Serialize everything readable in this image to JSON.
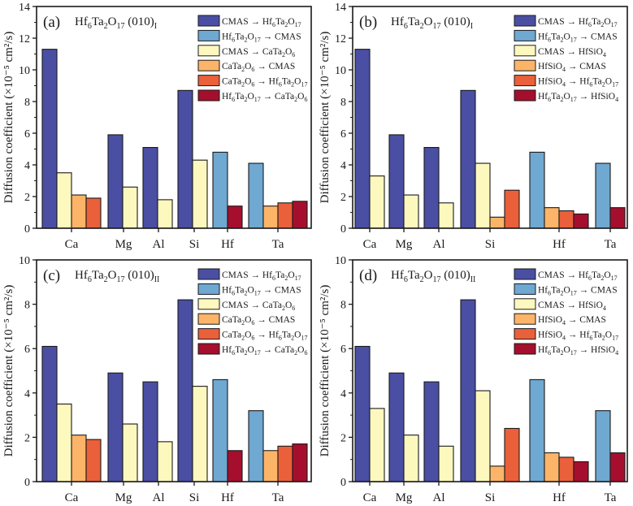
{
  "colors": {
    "s1": "#4A4FA3",
    "s2": "#6FA8D0",
    "s3": "#FDF8BE",
    "s4": "#FCB468",
    "s5": "#E9603B",
    "s6": "#A50F2D"
  },
  "chart_data": [
    {
      "type": "bar",
      "panel": "(a)",
      "title": "Hf6Ta2O17 (010)I",
      "title_parts": {
        "base": "Hf",
        "s1": "6",
        "t1": "Ta",
        "s2": "2",
        "t2": "O",
        "s3": "17",
        "t3": " (010)",
        "s4": "I"
      },
      "ylabel": "Diffusion coefficient (×10⁻⁵ cm²/s)",
      "ylim": [
        0,
        14
      ],
      "yticks": [
        0,
        2,
        4,
        6,
        8,
        10,
        12,
        14
      ],
      "categories": [
        "Ca",
        "Mg",
        "Al",
        "Si",
        "Hf",
        "Ta"
      ],
      "legend_position": "top-right",
      "series": [
        {
          "name": "CMAS → Hf6Ta2O17",
          "color_key": "s1",
          "values": [
            11.3,
            5.9,
            5.1,
            8.7,
            null,
            null
          ]
        },
        {
          "name": "Hf6Ta2O17 → CMAS",
          "color_key": "s2",
          "values": [
            null,
            null,
            null,
            null,
            4.8,
            4.1
          ]
        },
        {
          "name": "CMAS → CaTa2O6",
          "color_key": "s3",
          "values": [
            3.5,
            2.6,
            1.8,
            4.3,
            null,
            null
          ]
        },
        {
          "name": "CaTa2O6 → CMAS",
          "color_key": "s4",
          "values": [
            2.1,
            null,
            null,
            null,
            null,
            1.4
          ]
        },
        {
          "name": "CaTa2O6 → Hf6Ta2O17",
          "color_key": "s5",
          "values": [
            1.9,
            null,
            null,
            null,
            null,
            1.6
          ]
        },
        {
          "name": "Hf6Ta2O17 → CaTa2O6",
          "color_key": "s6",
          "values": [
            null,
            null,
            null,
            null,
            1.4,
            1.7
          ]
        }
      ],
      "legend_labels": [
        [
          [
            "CMAS → Hf",
            ""
          ],
          [
            "6",
            "sub"
          ],
          [
            "Ta",
            ""
          ],
          [
            "2",
            "sub"
          ],
          [
            "O",
            ""
          ],
          [
            "17",
            "sub"
          ]
        ],
        [
          [
            "Hf",
            ""
          ],
          [
            "6",
            "sub"
          ],
          [
            "Ta",
            ""
          ],
          [
            "2",
            "sub"
          ],
          [
            "O",
            ""
          ],
          [
            "17",
            "sub"
          ],
          [
            " → CMAS",
            ""
          ]
        ],
        [
          [
            "CMAS → CaTa",
            ""
          ],
          [
            "2",
            "sub"
          ],
          [
            "O",
            ""
          ],
          [
            "6",
            "sub"
          ]
        ],
        [
          [
            "CaTa",
            ""
          ],
          [
            "2",
            "sub"
          ],
          [
            "O",
            ""
          ],
          [
            "6",
            "sub"
          ],
          [
            " → CMAS",
            ""
          ]
        ],
        [
          [
            "CaTa",
            ""
          ],
          [
            "2",
            "sub"
          ],
          [
            "O",
            ""
          ],
          [
            "6",
            "sub"
          ],
          [
            " → Hf",
            ""
          ],
          [
            "6",
            "sub"
          ],
          [
            "Ta",
            ""
          ],
          [
            "2",
            "sub"
          ],
          [
            "O",
            ""
          ],
          [
            "17",
            "sub"
          ]
        ],
        [
          [
            "Hf",
            ""
          ],
          [
            "6",
            "sub"
          ],
          [
            "Ta",
            ""
          ],
          [
            "2",
            "sub"
          ],
          [
            "O",
            ""
          ],
          [
            "17",
            "sub"
          ],
          [
            " → CaTa",
            ""
          ],
          [
            "2",
            "sub"
          ],
          [
            "O",
            ""
          ],
          [
            "6",
            "sub"
          ]
        ]
      ]
    },
    {
      "type": "bar",
      "panel": "(b)",
      "title": "Hf6Ta2O17 (010)I",
      "title_parts": {
        "base": "Hf",
        "s1": "6",
        "t1": "Ta",
        "s2": "2",
        "t2": "O",
        "s3": "17",
        "t3": " (010)",
        "s4": "I"
      },
      "ylabel": "Diffusion coefficient (×10⁻⁵ cm²/s)",
      "ylim": [
        0,
        14
      ],
      "yticks": [
        0,
        2,
        4,
        6,
        8,
        10,
        12,
        14
      ],
      "categories": [
        "Ca",
        "Mg",
        "Al",
        "Si",
        "Hf",
        "Ta"
      ],
      "legend_position": "top-right",
      "series": [
        {
          "name": "CMAS → Hf6Ta2O17",
          "color_key": "s1",
          "values": [
            11.3,
            5.9,
            5.1,
            8.7,
            null,
            null
          ]
        },
        {
          "name": "Hf6Ta2O17 → CMAS",
          "color_key": "s2",
          "values": [
            null,
            null,
            null,
            null,
            4.8,
            4.1
          ]
        },
        {
          "name": "CMAS → HfSiO4",
          "color_key": "s3",
          "values": [
            3.3,
            2.1,
            1.6,
            4.1,
            null,
            null
          ]
        },
        {
          "name": "HfSiO4 → CMAS",
          "color_key": "s4",
          "values": [
            null,
            null,
            null,
            0.7,
            1.3,
            null
          ]
        },
        {
          "name": "HfSiO4 → Hf6Ta2O17",
          "color_key": "s5",
          "values": [
            null,
            null,
            null,
            2.4,
            1.1,
            null
          ]
        },
        {
          "name": "Hf6Ta2O17 → HfSiO4",
          "color_key": "s6",
          "values": [
            null,
            null,
            null,
            null,
            0.9,
            1.3
          ]
        }
      ],
      "legend_labels": [
        [
          [
            "CMAS → Hf",
            ""
          ],
          [
            "6",
            "sub"
          ],
          [
            "Ta",
            ""
          ],
          [
            "2",
            "sub"
          ],
          [
            "O",
            ""
          ],
          [
            "17",
            "sub"
          ]
        ],
        [
          [
            "Hf",
            ""
          ],
          [
            "6",
            "sub"
          ],
          [
            "Ta",
            ""
          ],
          [
            "2",
            "sub"
          ],
          [
            "O",
            ""
          ],
          [
            "17",
            "sub"
          ],
          [
            " → CMAS",
            ""
          ]
        ],
        [
          [
            "CMAS → HfSiO",
            ""
          ],
          [
            "4",
            "sub"
          ]
        ],
        [
          [
            "HfSiO",
            ""
          ],
          [
            "4",
            "sub"
          ],
          [
            " → CMAS",
            ""
          ]
        ],
        [
          [
            "HfSiO",
            ""
          ],
          [
            "4",
            "sub"
          ],
          [
            " → Hf",
            ""
          ],
          [
            "6",
            "sub"
          ],
          [
            "Ta",
            ""
          ],
          [
            "2",
            "sub"
          ],
          [
            "O",
            ""
          ],
          [
            "17",
            "sub"
          ]
        ],
        [
          [
            "Hf",
            ""
          ],
          [
            "6",
            "sub"
          ],
          [
            "Ta",
            ""
          ],
          [
            "2",
            "sub"
          ],
          [
            "O",
            ""
          ],
          [
            "17",
            "sub"
          ],
          [
            " → HfSiO",
            ""
          ],
          [
            "4",
            "sub"
          ]
        ]
      ]
    },
    {
      "type": "bar",
      "panel": "(c)",
      "title": "Hf6Ta2O17 (010)II",
      "title_parts": {
        "base": "Hf",
        "s1": "6",
        "t1": "Ta",
        "s2": "2",
        "t2": "O",
        "s3": "17",
        "t3": " (010)",
        "s4": "II"
      },
      "ylabel": "Diffusion coefficient (×10⁻⁵ cm²/s)",
      "ylim": [
        0,
        10
      ],
      "yticks": [
        0,
        2,
        4,
        6,
        8,
        10
      ],
      "categories": [
        "Ca",
        "Mg",
        "Al",
        "Si",
        "Hf",
        "Ta"
      ],
      "legend_position": "top-right",
      "series": [
        {
          "name": "CMAS → Hf6Ta2O17",
          "color_key": "s1",
          "values": [
            6.1,
            4.9,
            4.5,
            8.2,
            null,
            null
          ]
        },
        {
          "name": "Hf6Ta2O17 → CMAS",
          "color_key": "s2",
          "values": [
            null,
            null,
            null,
            null,
            4.6,
            3.2
          ]
        },
        {
          "name": "CMAS → CaTa2O6",
          "color_key": "s3",
          "values": [
            3.5,
            2.6,
            1.8,
            4.3,
            null,
            null
          ]
        },
        {
          "name": "CaTa2O6 → CMAS",
          "color_key": "s4",
          "values": [
            2.1,
            null,
            null,
            null,
            null,
            1.4
          ]
        },
        {
          "name": "CaTa2O6 → Hf6Ta2O17",
          "color_key": "s5",
          "values": [
            1.9,
            null,
            null,
            null,
            null,
            1.6
          ]
        },
        {
          "name": "Hf6Ta2O17 → CaTa2O6",
          "color_key": "s6",
          "values": [
            null,
            null,
            null,
            null,
            1.4,
            1.7
          ]
        }
      ],
      "legend_labels": [
        [
          [
            "CMAS → Hf",
            ""
          ],
          [
            "6",
            "sub"
          ],
          [
            "Ta",
            ""
          ],
          [
            "2",
            "sub"
          ],
          [
            "O",
            ""
          ],
          [
            "17",
            "sub"
          ]
        ],
        [
          [
            "Hf",
            ""
          ],
          [
            "6",
            "sub"
          ],
          [
            "Ta",
            ""
          ],
          [
            "2",
            "sub"
          ],
          [
            "O",
            ""
          ],
          [
            "17",
            "sub"
          ],
          [
            " → CMAS",
            ""
          ]
        ],
        [
          [
            "CMAS → CaTa",
            ""
          ],
          [
            "2",
            "sub"
          ],
          [
            "O",
            ""
          ],
          [
            "6",
            "sub"
          ]
        ],
        [
          [
            "CaTa",
            ""
          ],
          [
            "2",
            "sub"
          ],
          [
            "O",
            ""
          ],
          [
            "6",
            "sub"
          ],
          [
            " → CMAS",
            ""
          ]
        ],
        [
          [
            "CaTa",
            ""
          ],
          [
            "2",
            "sub"
          ],
          [
            "O",
            ""
          ],
          [
            "6",
            "sub"
          ],
          [
            " → Hf",
            ""
          ],
          [
            "6",
            "sub"
          ],
          [
            "Ta",
            ""
          ],
          [
            "2",
            "sub"
          ],
          [
            "O",
            ""
          ],
          [
            "17",
            "sub"
          ]
        ],
        [
          [
            "Hf",
            ""
          ],
          [
            "6",
            "sub"
          ],
          [
            "Ta",
            ""
          ],
          [
            "2",
            "sub"
          ],
          [
            "O",
            ""
          ],
          [
            "17",
            "sub"
          ],
          [
            " → CaTa",
            ""
          ],
          [
            "2",
            "sub"
          ],
          [
            "O",
            ""
          ],
          [
            "6",
            "sub"
          ]
        ]
      ]
    },
    {
      "type": "bar",
      "panel": "(d)",
      "title": "Hf6Ta2O17 (010)II",
      "title_parts": {
        "base": "Hf",
        "s1": "6",
        "t1": "Ta",
        "s2": "2",
        "t2": "O",
        "s3": "17",
        "t3": " (010)",
        "s4": "II"
      },
      "ylabel": "Diffusion coefficient (×10⁻⁵ cm²/s)",
      "ylim": [
        0,
        10
      ],
      "yticks": [
        0,
        2,
        4,
        6,
        8,
        10
      ],
      "categories": [
        "Ca",
        "Mg",
        "Al",
        "Si",
        "Hf",
        "Ta"
      ],
      "legend_position": "top-right",
      "series": [
        {
          "name": "CMAS → Hf6Ta2O17",
          "color_key": "s1",
          "values": [
            6.1,
            4.9,
            4.5,
            8.2,
            null,
            null
          ]
        },
        {
          "name": "Hf6Ta2O17 → CMAS",
          "color_key": "s2",
          "values": [
            null,
            null,
            null,
            null,
            4.6,
            3.2
          ]
        },
        {
          "name": "CMAS → HfSiO4",
          "color_key": "s3",
          "values": [
            3.3,
            2.1,
            1.6,
            4.1,
            null,
            null
          ]
        },
        {
          "name": "HfSiO4 → CMAS",
          "color_key": "s4",
          "values": [
            null,
            null,
            null,
            0.7,
            1.3,
            null
          ]
        },
        {
          "name": "HfSiO4 → Hf6Ta2O17",
          "color_key": "s5",
          "values": [
            null,
            null,
            null,
            2.4,
            1.1,
            null
          ]
        },
        {
          "name": "Hf6Ta2O17 → HfSiO4",
          "color_key": "s6",
          "values": [
            null,
            null,
            null,
            null,
            0.9,
            1.3
          ]
        }
      ],
      "legend_labels": [
        [
          [
            "CMAS → Hf",
            ""
          ],
          [
            "6",
            "sub"
          ],
          [
            "Ta",
            ""
          ],
          [
            "2",
            "sub"
          ],
          [
            "O",
            ""
          ],
          [
            "17",
            "sub"
          ]
        ],
        [
          [
            "Hf",
            ""
          ],
          [
            "6",
            "sub"
          ],
          [
            "Ta",
            ""
          ],
          [
            "2",
            "sub"
          ],
          [
            "O",
            ""
          ],
          [
            "17",
            "sub"
          ],
          [
            " → CMAS",
            ""
          ]
        ],
        [
          [
            "CMAS → HfSiO",
            ""
          ],
          [
            "4",
            "sub"
          ]
        ],
        [
          [
            "HfSiO",
            ""
          ],
          [
            "4",
            "sub"
          ],
          [
            " → CMAS",
            ""
          ]
        ],
        [
          [
            "HfSiO",
            ""
          ],
          [
            "4",
            "sub"
          ],
          [
            " → Hf",
            ""
          ],
          [
            "6",
            "sub"
          ],
          [
            "Ta",
            ""
          ],
          [
            "2",
            "sub"
          ],
          [
            "O",
            ""
          ],
          [
            "17",
            "sub"
          ]
        ],
        [
          [
            "Hf",
            ""
          ],
          [
            "6",
            "sub"
          ],
          [
            "Ta",
            ""
          ],
          [
            "2",
            "sub"
          ],
          [
            "O",
            ""
          ],
          [
            "17",
            "sub"
          ],
          [
            " → HfSiO",
            ""
          ],
          [
            "4",
            "sub"
          ]
        ]
      ]
    }
  ]
}
